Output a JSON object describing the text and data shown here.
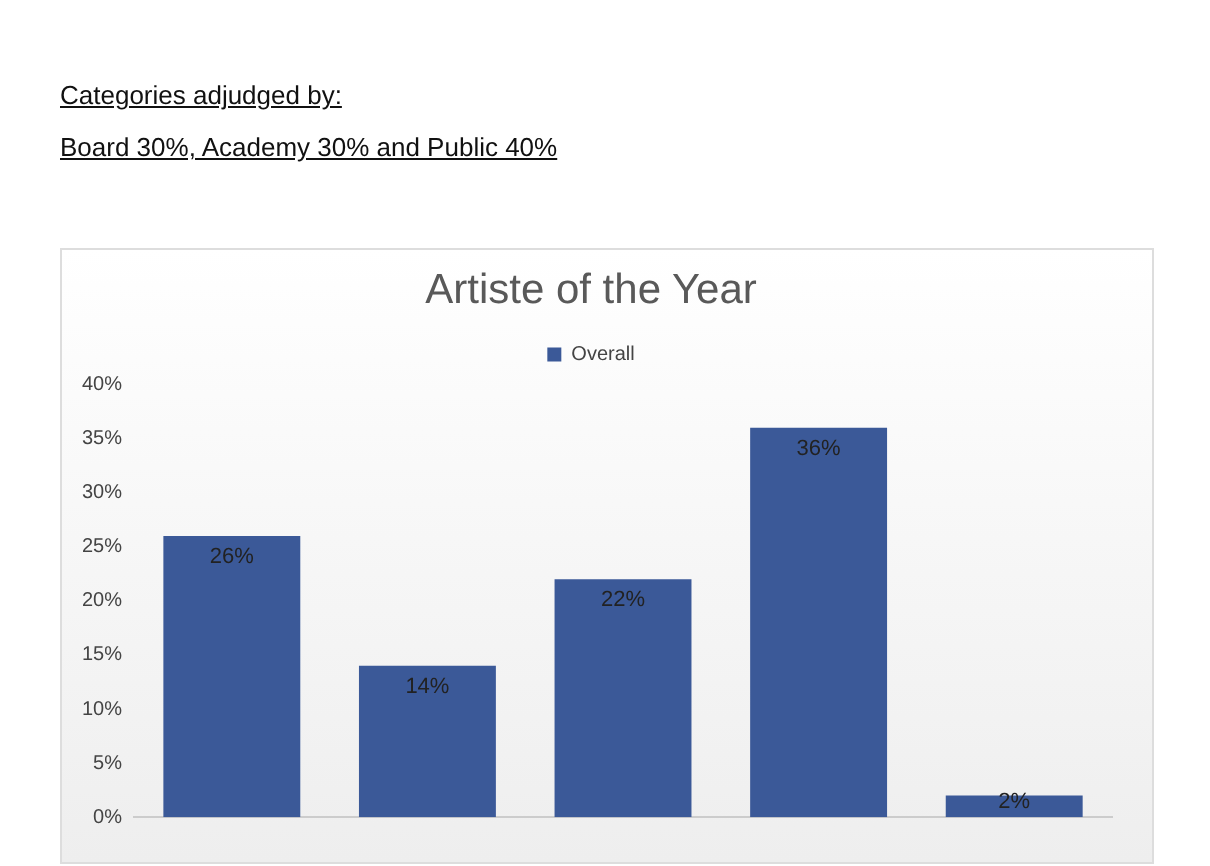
{
  "chart_data": {
    "type": "bar",
    "title": "Artiste of the Year",
    "annotations": [
      "Categories adjudged by:",
      "Board 30%, Academy 30% and Public 40%"
    ],
    "categories": [
      null,
      null,
      null,
      null,
      null
    ],
    "series": [
      {
        "name": "Overall",
        "color": "#3b5998",
        "values": [
          26,
          14,
          22,
          36,
          2
        ]
      }
    ],
    "ylim": [
      0,
      40
    ],
    "yticks": [
      {
        "value": 0,
        "label": "0%"
      },
      {
        "value": 5,
        "label": "5%"
      },
      {
        "value": 10,
        "label": "10%"
      },
      {
        "value": 15,
        "label": "15%"
      },
      {
        "value": 20,
        "label": "20%"
      },
      {
        "value": 25,
        "label": "25%"
      },
      {
        "value": 30,
        "label": "30%"
      },
      {
        "value": 35,
        "label": "35%"
      },
      {
        "value": 40,
        "label": "40%"
      }
    ],
    "value_labels": [
      "26%",
      "14%",
      "22%",
      "36%",
      "2%"
    ],
    "legend": "top",
    "grid": false
  }
}
